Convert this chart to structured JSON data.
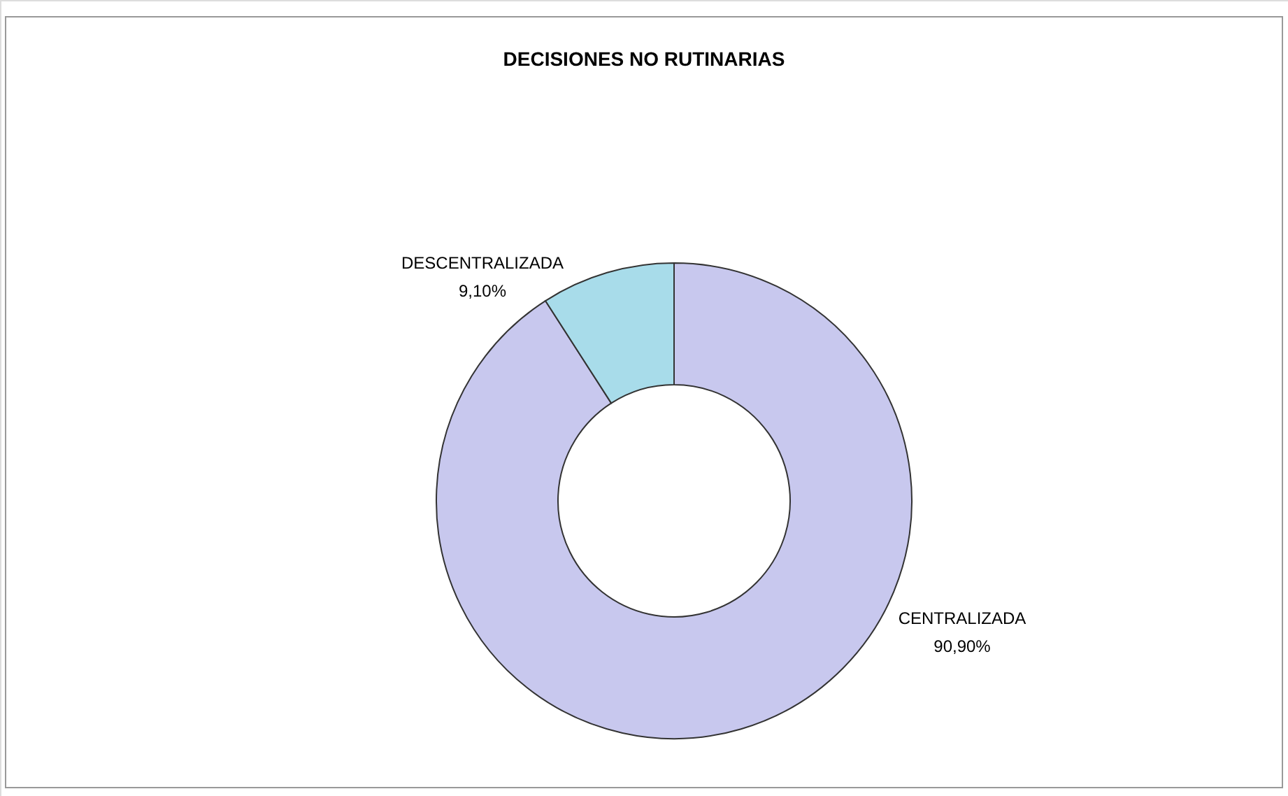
{
  "chart_data": {
    "type": "donut",
    "title": "DECISIONES NO RUTINARIAS",
    "categories": [
      "CENTRALIZADA",
      "DESCENTRALIZADA"
    ],
    "values": [
      90.9,
      9.1
    ],
    "value_labels": [
      "90,90%",
      "9,10%"
    ],
    "colors": [
      "#c8c8ee",
      "#a8dcea"
    ]
  }
}
